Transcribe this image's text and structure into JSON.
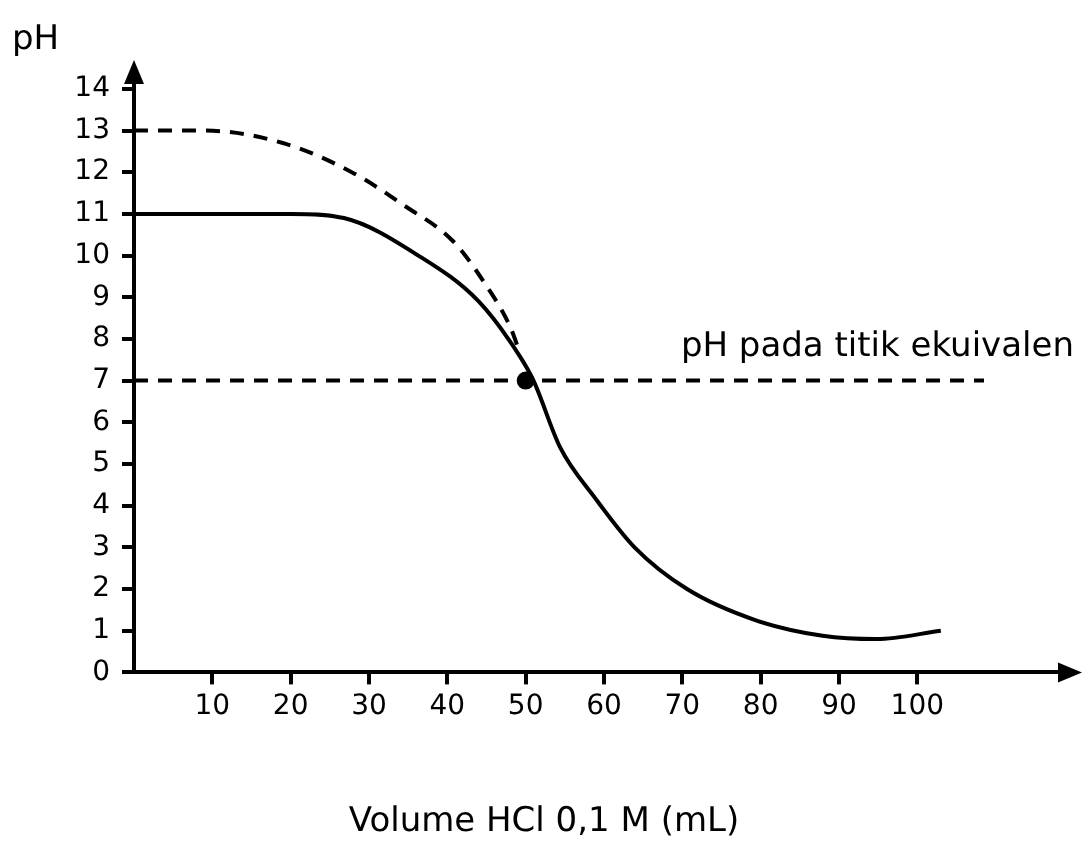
{
  "chart_data": {
    "type": "line",
    "xlabel": "Volume HCl 0,1 M (mL)",
    "ylabel": "pH",
    "xlim": [
      0,
      120
    ],
    "ylim": [
      0,
      14.5
    ],
    "xticks": [
      10,
      20,
      30,
      40,
      50,
      60,
      70,
      80,
      90,
      100
    ],
    "yticks": [
      0,
      1,
      2,
      3,
      4,
      5,
      6,
      7,
      8,
      9,
      10,
      11,
      12,
      13,
      14
    ],
    "series": [
      {
        "color": "#000000",
        "line_style": "dashed",
        "x": [
          0,
          8.8,
          19,
          27.8,
          34.5,
          40.7,
          44.9,
          48,
          49.2
        ],
        "values": [
          13,
          13,
          12.7,
          12,
          11.2,
          10.35,
          9.3,
          8.3,
          7.7
        ]
      },
      {
        "color": "#000000",
        "line_style": "solid",
        "x": [
          0,
          10,
          20,
          26.8,
          36.3,
          44,
          49.2,
          51,
          54.4,
          58.8,
          63.9,
          70.6,
          79.4,
          87.9,
          94.8,
          103
        ],
        "values": [
          11,
          11,
          11,
          10.9,
          10,
          8.9,
          7.6,
          7,
          5.4,
          4.2,
          3,
          2,
          1.25,
          0.88,
          0.8,
          1
        ]
      },
      {
        "type": "scatter",
        "color": "#000000",
        "marker": "circle",
        "x": [
          50
        ],
        "values": [
          7
        ]
      }
    ],
    "ref_lines": [
      {
        "axis": "y",
        "value": 7,
        "label": "pH pada titik ekuivalen",
        "line_style": "dashed",
        "color": "#000000"
      }
    ],
    "grid": false,
    "legend": false
  }
}
